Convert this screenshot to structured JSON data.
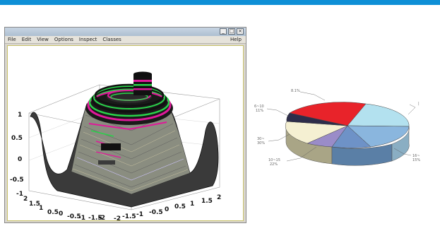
{
  "window": {
    "menu": [
      "File",
      "Edit",
      "View",
      "Options",
      "Inspect",
      "Classes"
    ],
    "help": "Help",
    "controls": [
      "_",
      "□",
      "×"
    ]
  },
  "surface_plot": {
    "x_ticks": [
      "-2",
      "-1.5",
      "-1",
      "-0.5",
      "0",
      "0.5",
      "1",
      "1.5",
      "2"
    ],
    "y_ticks": [
      "2",
      "1.5",
      "1",
      "0.5",
      "0",
      "-0.5",
      "-1",
      "-1.5",
      "-2"
    ],
    "z_ticks": [
      "1",
      "0.5",
      "0",
      "-0.5",
      "-1"
    ]
  },
  "pie": {
    "labels": [
      "8.1%",
      "6~10\n11%",
      "30~\n30%",
      "10~15\n22%",
      "16~\n15%"
    ],
    "colors": {
      "red": "#e8232a",
      "light_blue": "#b3e1ef",
      "blue": "#8ab6de",
      "purple": "#9a8cc8",
      "cream": "#f5f0d2",
      "dark": "#2d2d4a"
    }
  }
}
